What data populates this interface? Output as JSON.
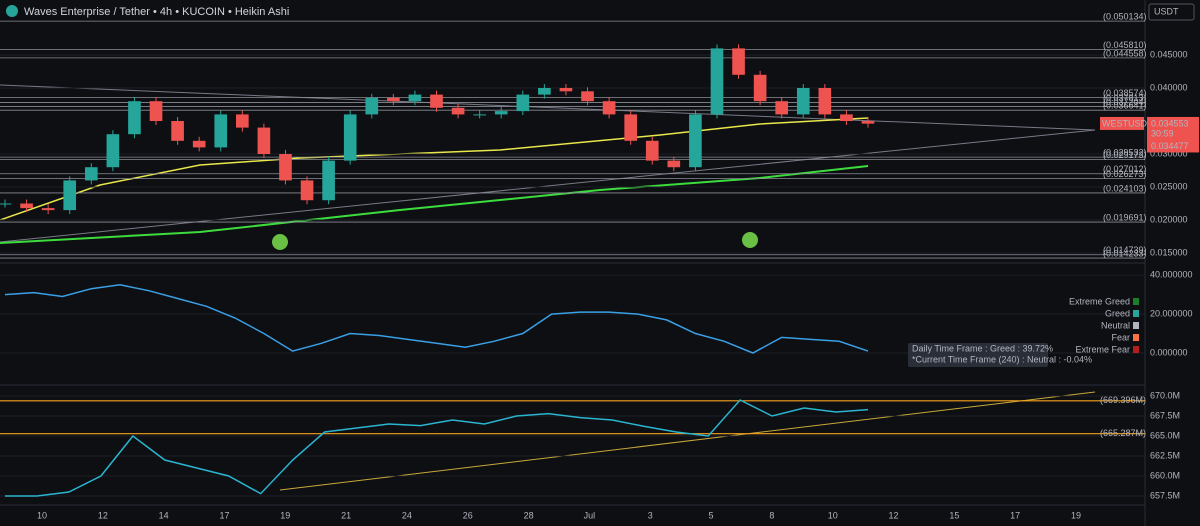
{
  "header": {
    "title": "Waves Enterprise / Tether • 4h • KUCOIN • Heikin Ashi",
    "currency": "USDT"
  },
  "price_pane": {
    "ylim": [
      0.01364,
      0.05333
    ],
    "yticks": [
      {
        "value": 0.045,
        "label": "0.045000"
      },
      {
        "value": 0.04,
        "label": "0.040000"
      },
      {
        "value": 0.03,
        "label": "0.030000"
      },
      {
        "value": 0.025,
        "label": "0.025000"
      },
      {
        "value": 0.02,
        "label": "0.020000"
      },
      {
        "value": 0.015,
        "label": "0.015000"
      }
    ],
    "levels": [
      {
        "value": 0.050134,
        "label": "(0.050134)"
      },
      {
        "value": 0.04581,
        "label": "(0.045810)"
      },
      {
        "value": 0.044558,
        "label": "(0.044558)"
      },
      {
        "value": 0.038574,
        "label": "(0.038574)"
      },
      {
        "value": 0.037813,
        "label": "(0.037813)"
      },
      {
        "value": 0.037204,
        "label": "(0.037204)"
      },
      {
        "value": 0.036641,
        "label": "(0.036641)"
      },
      {
        "value": 0.029532,
        "label": "(0.029532)"
      },
      {
        "value": 0.029173,
        "label": "(0.029173)"
      },
      {
        "value": 0.027012,
        "label": "(0.027012)"
      },
      {
        "value": 0.026273,
        "label": "(0.026273)"
      },
      {
        "value": 0.024103,
        "label": "(0.024103)"
      },
      {
        "value": 0.019691,
        "label": "(0.019691)"
      },
      {
        "value": 0.014739,
        "label": "(0.014739)"
      },
      {
        "value": 0.014233,
        "label": "(0.014233)"
      }
    ],
    "symbol": "WESTUSDT",
    "last": {
      "value": 0.034553,
      "label": "0.034553"
    },
    "countdown": "30:59",
    "prev": {
      "value": 0.034477,
      "label": "0.034477"
    },
    "closes": [
      0.0225,
      0.0218,
      0.0215,
      0.026,
      0.028,
      0.033,
      0.038,
      0.035,
      0.032,
      0.031,
      0.036,
      0.034,
      0.03,
      0.026,
      0.023,
      0.029,
      0.036,
      0.0385,
      0.038,
      0.039,
      0.037,
      0.036,
      0.036,
      0.0365,
      0.039,
      0.04,
      0.0395,
      0.038,
      0.036,
      0.032,
      0.029,
      0.028,
      0.036,
      0.046,
      0.042,
      0.038,
      0.036,
      0.04,
      0.036,
      0.035,
      0.0346
    ]
  },
  "sentiment_pane": {
    "ylim": [
      -16.4,
      46.2
    ],
    "yticks": [
      {
        "value": 40,
        "label": "40.000000"
      },
      {
        "value": 20,
        "label": "20.000000"
      },
      {
        "value": 0,
        "label": "0.000000"
      }
    ],
    "legend": [
      "Extreme Greed",
      "Greed",
      "Neutral",
      "Fear",
      "Extreme Fear"
    ],
    "tooltip": [
      "Daily Time Frame : Greed : 39.72%",
      "*Current Time Frame (240) : Neutral : -0.04%"
    ],
    "values": [
      30,
      31,
      29,
      33,
      35,
      32,
      28,
      24,
      18,
      10,
      1,
      5,
      10,
      9,
      7,
      5,
      3,
      6,
      10,
      20,
      21,
      21,
      20,
      17,
      10,
      6,
      0,
      8,
      7,
      6,
      1
    ]
  },
  "volume_pane": {
    "ylim": [
      656.375,
      671.375
    ],
    "yticks": [
      {
        "value": 670,
        "label": "670.0M"
      },
      {
        "value": 667.5,
        "label": "667.5M"
      },
      {
        "value": 665,
        "label": "665.0M"
      },
      {
        "value": 662.5,
        "label": "662.5M"
      },
      {
        "value": 660,
        "label": "660.0M"
      },
      {
        "value": 657.5,
        "label": "657.5M"
      }
    ],
    "levels": [
      {
        "value": 669.396,
        "label": "(669.396M)"
      },
      {
        "value": 665.287,
        "label": "(665.287M)"
      }
    ],
    "values": [
      657.5,
      657.5,
      658,
      660,
      665,
      662,
      661,
      660,
      657.8,
      662,
      665.5,
      666,
      666.5,
      666.3,
      667,
      666.5,
      667.5,
      667.8,
      667.3,
      667,
      666.2,
      665.5,
      665,
      669.5,
      667.5,
      668.5,
      668,
      668.3
    ]
  },
  "time_axis": [
    "10",
    "12",
    "14",
    "17",
    "19",
    "21",
    "24",
    "26",
    "28",
    "Jul",
    "3",
    "5",
    "8",
    "10",
    "12",
    "15",
    "17",
    "19"
  ]
}
